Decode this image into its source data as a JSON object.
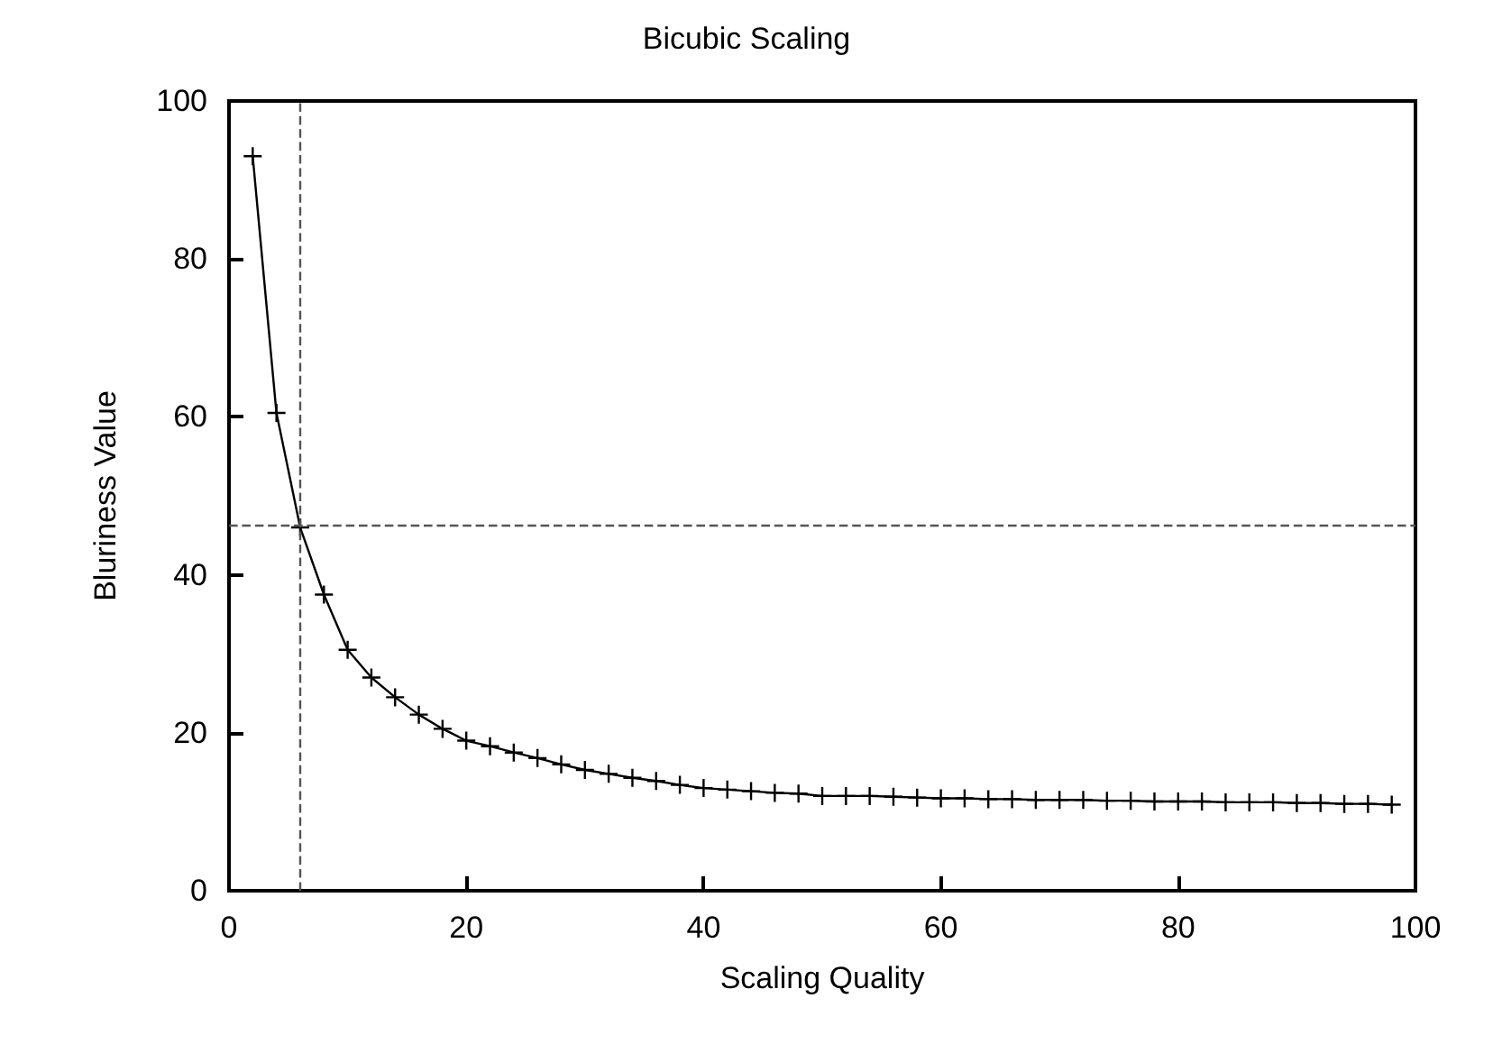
{
  "chart_data": {
    "type": "line",
    "title": "Bicubic Scaling",
    "xlabel": "Scaling Quality",
    "ylabel": "Bluriness Value",
    "x": [
      2,
      4,
      6,
      8,
      10,
      12,
      14,
      16,
      18,
      20,
      22,
      24,
      26,
      28,
      30,
      32,
      34,
      36,
      38,
      40,
      42,
      44,
      46,
      48,
      50,
      52,
      54,
      56,
      58,
      60,
      62,
      64,
      66,
      68,
      70,
      72,
      74,
      76,
      78,
      80,
      82,
      84,
      86,
      88,
      90,
      92,
      94,
      96,
      98
    ],
    "series": [
      {
        "color": "#000000",
        "values": [
          93,
          60.5,
          46,
          37.5,
          30.5,
          27,
          24.5,
          22.3,
          20.5,
          19,
          18.3,
          17.5,
          16.8,
          16,
          15.3,
          14.8,
          14.3,
          13.9,
          13.4,
          13,
          12.8,
          12.6,
          12.4,
          12.3,
          12,
          12,
          12,
          11.9,
          11.8,
          11.7,
          11.7,
          11.6,
          11.6,
          11.5,
          11.5,
          11.5,
          11.4,
          11.4,
          11.3,
          11.3,
          11.3,
          11.2,
          11.2,
          11.2,
          11.1,
          11.1,
          11,
          11,
          10.9
        ]
      }
    ],
    "xlim": [
      0,
      100
    ],
    "xticks": [
      0,
      20,
      40,
      60,
      80,
      100
    ],
    "ylim": [
      0,
      100
    ],
    "yticks": [
      0,
      20,
      40,
      60,
      80,
      100
    ],
    "marker": "cross",
    "line_style": "solid",
    "grid": false,
    "ref_lines": [
      {
        "axis": "x",
        "value": 6,
        "line_style": "dashed",
        "color": "#555555"
      },
      {
        "axis": "y",
        "value": 46.2,
        "line_style": "dashed",
        "color": "#555555"
      }
    ]
  }
}
